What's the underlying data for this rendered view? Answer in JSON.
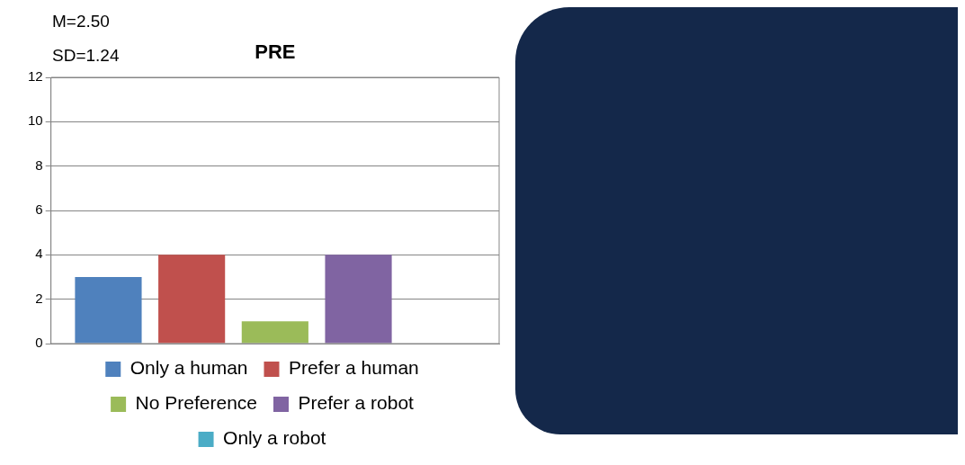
{
  "chart_data": {
    "type": "bar",
    "title": "PRE",
    "annotations": [
      "M=2.50",
      "SD=1.24"
    ],
    "categories": [
      null
    ],
    "series": [
      {
        "name": "Only a human",
        "color": "#4f81bd",
        "values": [
          3
        ]
      },
      {
        "name": "Prefer a human",
        "color": "#c0504d",
        "values": [
          4
        ]
      },
      {
        "name": "No Preference",
        "color": "#9bbb59",
        "values": [
          1
        ]
      },
      {
        "name": "Prefer a robot",
        "color": "#8064a2",
        "values": [
          4
        ]
      },
      {
        "name": "Only a robot",
        "color": "#4bacc6",
        "values": [
          0
        ]
      }
    ],
    "ylim": [
      0,
      12
    ],
    "yticks": [
      0,
      2,
      4,
      6,
      8,
      10,
      12
    ],
    "grid": "y",
    "legend": "bottom"
  }
}
